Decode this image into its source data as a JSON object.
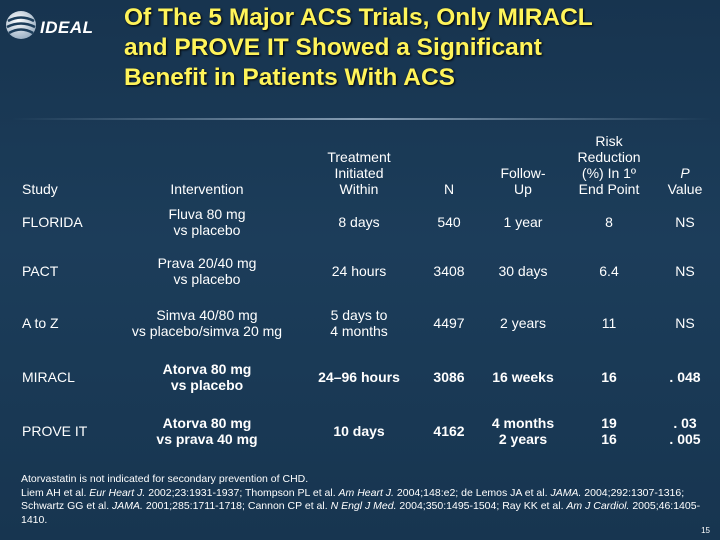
{
  "logo": {
    "text": "IDEAL"
  },
  "title": {
    "line1": "Of The 5 Major ACS Trials, Only MIRACL",
    "line2": "and PROVE IT Showed a Significant",
    "line3": "Benefit in Patients With ACS"
  },
  "table": {
    "headers": {
      "study": "Study",
      "intervention": "Intervention",
      "treatment": [
        "Treatment",
        "Initiated",
        "Within"
      ],
      "n": "N",
      "followup": [
        "Follow-",
        "Up"
      ],
      "risk": [
        "Risk",
        "Reduction",
        "(%) In 1º",
        "End Point"
      ],
      "p": [
        "P",
        "Value"
      ]
    },
    "rows": [
      {
        "study": "FLORIDA",
        "intervention": [
          "Fluva 80 mg",
          "vs placebo"
        ],
        "treatment": [
          "8 days"
        ],
        "n": "540",
        "followup": [
          "1 year"
        ],
        "risk": [
          "8"
        ],
        "p": [
          "NS"
        ]
      },
      {
        "study": "PACT",
        "intervention": [
          "Prava 20/40 mg",
          "vs placebo"
        ],
        "treatment": [
          "24 hours"
        ],
        "n": "3408",
        "followup": [
          "30 days"
        ],
        "risk": [
          "6.4"
        ],
        "p": [
          "NS"
        ]
      },
      {
        "study": "A to Z",
        "intervention": [
          "Simva 40/80 mg",
          "vs placebo/simva 20 mg"
        ],
        "treatment": [
          "5 days to",
          "4 months"
        ],
        "n": "4497",
        "followup": [
          "2 years"
        ],
        "risk": [
          "11"
        ],
        "p": [
          "NS"
        ]
      },
      {
        "study": "MIRACL",
        "intervention": [
          "Atorva 80 mg",
          "vs placebo"
        ],
        "treatment": [
          "24–96 hours"
        ],
        "n": "3086",
        "followup": [
          "16 weeks"
        ],
        "risk": [
          "16"
        ],
        "p": [
          ". 048"
        ]
      },
      {
        "study": "PROVE IT",
        "intervention": [
          "Atorva 80 mg",
          "vs prava 40 mg"
        ],
        "treatment": [
          "10 days"
        ],
        "n": "4162",
        "followup": [
          "4 months",
          "2 years"
        ],
        "risk": [
          "19",
          "16"
        ],
        "p": [
          ". 03",
          ". 005"
        ]
      }
    ]
  },
  "footer": {
    "note": "Atorvastatin is not indicated for secondary prevention of CHD.",
    "refs": [
      {
        "authors": "Liem AH et al. ",
        "journal": "Eur Heart J.",
        "cite": " 2002;23:1931-1937; "
      },
      {
        "authors": "Thompson PL et al. ",
        "journal": "Am Heart J.",
        "cite": " 2004;148:e2; "
      },
      {
        "authors": "de Lemos JA et al. ",
        "journal": "JAMA.",
        "cite": " 2004;292:1307-1316; "
      },
      {
        "authors": "Schwartz GG et al. ",
        "journal": "JAMA.",
        "cite": " 2001;285:1711-1718; "
      },
      {
        "authors": "Cannon CP et al. ",
        "journal": "N Engl J Med.",
        "cite": " 2004;350:1495-1504; "
      },
      {
        "authors": "Ray KK et al. ",
        "journal": "Am J Cardiol.",
        "cite": " 2005;46:1405-1410."
      }
    ]
  },
  "page_number": "15",
  "colors": {
    "title": "#fff45a",
    "background": "#1c3d5a",
    "text": "#ffffff"
  }
}
